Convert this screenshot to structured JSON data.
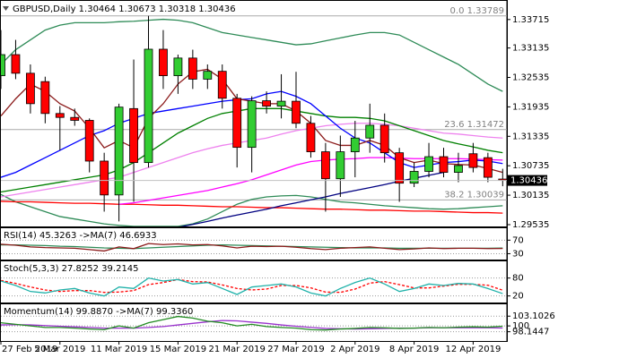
{
  "chart_data": [
    {
      "type": "candlestick",
      "title": "GBPUSD,Daily 1.30464 1.30673 1.30318 1.30436",
      "categories": [
        "27 Feb 2019",
        null,
        null,
        null,
        "5 Mar 2019",
        null,
        null,
        null,
        "11 Mar 2019",
        null,
        null,
        null,
        "15 Mar 2019",
        null,
        null,
        null,
        "21 Mar 2019",
        null,
        null,
        null,
        "27 Mar 2019",
        null,
        null,
        null,
        "2 Apr 2019",
        null,
        null,
        null,
        "8 Apr 2019",
        null,
        null,
        null,
        "12 Apr 2019",
        null,
        null
      ],
      "open": [
        1.3257,
        1.33,
        1.3262,
        1.3245,
        1.318,
        1.3172,
        1.3166,
        1.3083,
        1.3014,
        1.319,
        1.308,
        1.3311,
        1.3257,
        1.3293,
        1.325,
        1.3266,
        1.3211,
        1.3111,
        1.3206,
        1.3195,
        1.3205,
        1.316,
        1.3102,
        1.3047,
        1.3102,
        1.313,
        1.3156,
        1.31,
        1.3038,
        1.3062,
        1.3092,
        1.306,
        1.3098,
        1.309,
        1.30464
      ],
      "high": [
        1.335,
        1.333,
        1.328,
        1.3255,
        1.3195,
        1.319,
        1.317,
        1.31,
        1.32,
        1.329,
        1.33789,
        1.335,
        1.33,
        1.331,
        1.328,
        1.328,
        1.322,
        1.3215,
        1.3225,
        1.326,
        1.3265,
        1.3175,
        1.312,
        1.3135,
        1.3165,
        1.32,
        1.318,
        1.311,
        1.308,
        1.312,
        1.311,
        1.31,
        1.312,
        1.31,
        1.30673
      ],
      "low": [
        1.323,
        1.325,
        1.318,
        1.316,
        1.3105,
        1.3155,
        1.306,
        1.298,
        1.296,
        1.3,
        1.307,
        1.323,
        1.322,
        1.323,
        1.323,
        1.319,
        1.307,
        1.306,
        1.318,
        1.317,
        1.315,
        1.309,
        1.298,
        1.301,
        1.305,
        1.31,
        1.308,
        1.3,
        1.303,
        1.305,
        1.305,
        1.304,
        1.306,
        1.304,
        1.30318
      ],
      "close": [
        1.33,
        1.3262,
        1.32,
        1.318,
        1.3172,
        1.3166,
        1.3083,
        1.3014,
        1.3193,
        1.308,
        1.3311,
        1.3257,
        1.3293,
        1.325,
        1.3266,
        1.3211,
        1.3111,
        1.3206,
        1.3195,
        1.3205,
        1.316,
        1.3102,
        1.3047,
        1.3102,
        1.313,
        1.3156,
        1.31,
        1.3038,
        1.3062,
        1.3092,
        1.306,
        1.3074,
        1.307,
        1.305,
        1.30436
      ],
      "up_color": "#32cd32",
      "down_color": "#ff0000",
      "series": [
        {
          "color": "#2e8b57",
          "values": [
            1.328,
            1.331,
            1.333,
            1.335,
            1.336,
            1.3365,
            1.3365,
            1.3365,
            1.3367,
            1.3368,
            1.337,
            1.3372,
            1.337,
            1.3365,
            1.3355,
            1.3345,
            1.334,
            1.3335,
            1.333,
            1.3325,
            1.332,
            1.3322,
            1.3328,
            1.3334,
            1.334,
            1.3345,
            1.3345,
            1.334,
            1.3325,
            1.331,
            1.3295,
            1.328,
            1.326,
            1.324,
            1.3225
          ]
        },
        {
          "color": "#2e8b57",
          "values": [
            1.3015,
            1.3,
            1.299,
            1.298,
            1.297,
            1.2965,
            1.296,
            1.2955,
            1.2952,
            1.295,
            1.295,
            1.295,
            1.295,
            1.2955,
            1.2965,
            1.298,
            1.2995,
            1.3005,
            1.301,
            1.3012,
            1.3013,
            1.301,
            1.3005,
            1.3,
            1.2998,
            1.2995,
            1.2992,
            1.299,
            1.2988,
            1.2986,
            1.2985,
            1.2986,
            1.2988,
            1.299,
            1.2992
          ]
        },
        {
          "color": "#ff0000",
          "values": [
            1.3001,
            1.3,
            1.3,
            1.2999,
            1.2998,
            1.2997,
            1.2997,
            1.2996,
            1.2995,
            1.2995,
            1.2994,
            1.2993,
            1.2993,
            1.2992,
            1.2991,
            1.299,
            1.299,
            1.2989,
            1.2988,
            1.2988,
            1.2987,
            1.2986,
            1.2985,
            1.2985,
            1.2984,
            1.2983,
            1.2983,
            1.2982,
            1.2981,
            1.2981,
            1.298,
            1.2979,
            1.2978,
            1.2978,
            1.2977
          ]
        },
        {
          "color": "#000080",
          "values": [
            null,
            null,
            null,
            null,
            null,
            null,
            null,
            null,
            null,
            null,
            null,
            null,
            1.2948,
            1.2954,
            1.296,
            1.2967,
            1.2973,
            1.2979,
            1.2985,
            1.2992,
            1.2998,
            1.3004,
            1.301,
            1.3017,
            1.3023,
            1.3029,
            1.3035,
            1.3042,
            1.3048,
            1.3054,
            1.306,
            null,
            null,
            null,
            null
          ]
        },
        {
          "color": "#ee82ee",
          "values": [
            1.301,
            1.3015,
            1.302,
            1.3025,
            1.303,
            1.3035,
            1.304,
            1.3045,
            1.305,
            1.306,
            1.307,
            1.308,
            1.309,
            1.31,
            1.3108,
            1.3115,
            1.312,
            1.3125,
            1.313,
            1.3138,
            1.3145,
            1.315,
            1.3155,
            1.3158,
            1.316,
            1.316,
            1.3158,
            1.3155,
            1.315,
            1.3145,
            1.314,
            1.3138,
            1.3135,
            1.3132,
            1.313
          ]
        },
        {
          "color": "#ff00ff",
          "values": [
            null,
            null,
            null,
            null,
            null,
            null,
            null,
            null,
            1.2995,
            1.2998,
            1.3003,
            1.3008,
            1.3013,
            1.3018,
            1.3023,
            1.303,
            1.3037,
            1.3045,
            1.3055,
            1.3065,
            1.3075,
            1.3082,
            1.3085,
            1.3087,
            1.3088,
            1.309,
            1.309,
            1.3089,
            1.3088,
            1.3088,
            1.3088,
            1.3088,
            1.3087,
            1.3086,
            1.3085
          ]
        },
        {
          "color": "#008000",
          "values": [
            1.302,
            1.3025,
            1.303,
            1.3035,
            1.304,
            1.3045,
            1.305,
            1.3055,
            1.3065,
            1.308,
            1.31,
            1.312,
            1.314,
            1.3155,
            1.317,
            1.318,
            1.3185,
            1.319,
            1.319,
            1.319,
            1.3185,
            1.318,
            1.3175,
            1.3172,
            1.3172,
            1.317,
            1.3165,
            1.3155,
            1.3145,
            1.3135,
            1.3125,
            1.3118,
            1.3112,
            1.3105,
            1.31
          ]
        },
        {
          "color": "#0000ff",
          "values": [
            1.305,
            1.306,
            1.3075,
            1.309,
            1.3105,
            1.312,
            1.3135,
            1.3145,
            1.316,
            1.317,
            1.318,
            1.3185,
            1.319,
            1.3195,
            1.32,
            1.3205,
            1.3208,
            1.321,
            1.322,
            1.3225,
            1.3215,
            1.32,
            1.3175,
            1.315,
            1.313,
            1.312,
            1.31,
            1.308,
            1.307,
            1.3075,
            1.308,
            1.3082,
            1.3085,
            1.3083,
            1.3078
          ]
        },
        {
          "color": "#8b1a1a",
          "values": [
            1.3175,
            1.321,
            1.324,
            1.3225,
            1.32,
            1.3185,
            1.315,
            1.311,
            1.3125,
            1.311,
            1.317,
            1.32,
            1.324,
            1.3265,
            1.327,
            1.325,
            1.321,
            1.3205,
            1.32,
            1.32,
            1.3185,
            1.316,
            1.3125,
            1.3115,
            1.3115,
            1.3125,
            1.3115,
            1.309,
            1.308,
            1.3085,
            1.3078,
            1.3076,
            1.3075,
            1.3068,
            1.306
          ]
        }
      ],
      "fibonacci": [
        {
          "level": "0.0",
          "price": 1.33789
        },
        {
          "level": 23.6,
          "price": 1.31472
        },
        {
          "level": 38.2,
          "price": 1.30039
        }
      ],
      "ylim": [
        1.2948,
        1.3404
      ],
      "yticks": [
        1.33715,
        1.33135,
        1.32535,
        1.31935,
        1.31335,
        1.30735,
        1.30135,
        1.29535
      ],
      "grid": false
    },
    {
      "type": "line",
      "title": "RSI(14) 45.3263 ->MA(7) 46.6933",
      "series": [
        {
          "color": "#2e8b57",
          "values": [
            56,
            56,
            55,
            54,
            52,
            51,
            49,
            47,
            46,
            45,
            47,
            49,
            51,
            53,
            55,
            56,
            55,
            54,
            53,
            52,
            51,
            50,
            49,
            48,
            47,
            47,
            47,
            46,
            46,
            46,
            46,
            46,
            46,
            46,
            46.6933
          ]
        },
        {
          "color": "#8b1a1a",
          "values": [
            58,
            55,
            50,
            48,
            47,
            46,
            42,
            38,
            50,
            45,
            60,
            57,
            59,
            56,
            57,
            53,
            47,
            52,
            51,
            52,
            49,
            45,
            42,
            46,
            48,
            50,
            46,
            42,
            44,
            47,
            45,
            46,
            46,
            45,
            45.3263
          ]
        }
      ],
      "ylim": [
        10,
        100
      ],
      "yticks": [
        70,
        30
      ],
      "grid": true
    },
    {
      "type": "line",
      "title": "Stoch(5,3,3) 27.8252 39.2145",
      "series": [
        {
          "color": "#ff0000",
          "dashed": true,
          "values": [
            72,
            62,
            50,
            40,
            35,
            38,
            38,
            32,
            33,
            38,
            58,
            65,
            75,
            68,
            67,
            57,
            45,
            40,
            43,
            55,
            55,
            47,
            33,
            32,
            43,
            63,
            68,
            58,
            47,
            47,
            53,
            59,
            59,
            56,
            39.2145
          ]
        },
        {
          "color": "#20b2aa",
          "values": [
            70,
            55,
            35,
            30,
            40,
            45,
            30,
            20,
            50,
            45,
            80,
            70,
            75,
            60,
            65,
            45,
            25,
            50,
            55,
            60,
            50,
            30,
            20,
            45,
            65,
            80,
            60,
            35,
            45,
            60,
            55,
            62,
            60,
            45,
            27.8252
          ]
        }
      ],
      "ylim": [
        -5,
        130
      ],
      "yticks": [
        80,
        20
      ],
      "grid": true
    },
    {
      "type": "line",
      "title": "Momentum(14) 99.8870 ->MA(7) 99.3360",
      "series": [
        {
          "color": "#9932cc",
          "values": [
            100.3,
            100.4,
            100.3,
            100.1,
            99.9,
            99.7,
            99.5,
            99.3,
            99.3,
            99.3,
            99.5,
            99.8,
            100.3,
            100.8,
            101.3,
            101.7,
            101.6,
            101.2,
            100.8,
            100.3,
            99.9,
            99.5,
            99.2,
            99.1,
            99.0,
            99.1,
            99.2,
            99.3,
            99.3,
            99.4,
            99.4,
            99.4,
            99.4,
            99.4,
            99.336
          ]
        },
        {
          "color": "#228b22",
          "values": [
            101,
            100.5,
            100,
            99.5,
            99.5,
            99.3,
            99,
            98.8,
            100,
            99.3,
            101,
            102,
            103,
            102.5,
            101.5,
            101,
            100,
            100.5,
            99.8,
            99.5,
            99.3,
            98.8,
            98.7,
            99,
            99.2,
            99.5,
            99.4,
            99.2,
            99.3,
            99.5,
            99.4,
            99.6,
            99.7,
            99.6,
            99.887
          ]
        }
      ],
      "ylim": [
        95.2,
        106.3
      ],
      "yticks": [
        103.1026,
        100,
        98.1447
      ],
      "grid": true
    }
  ]
}
